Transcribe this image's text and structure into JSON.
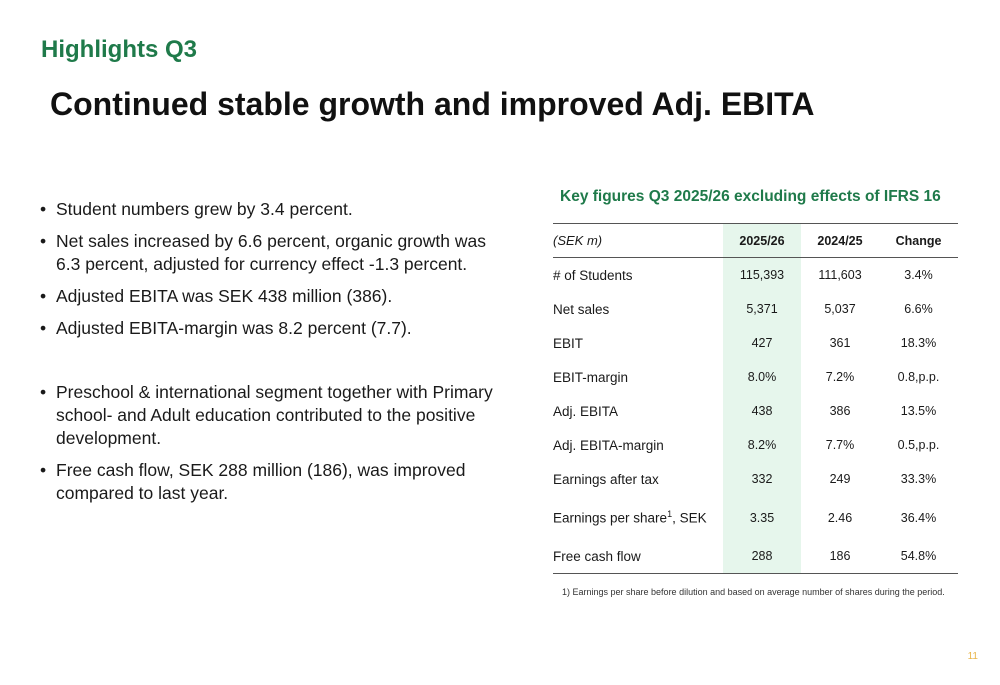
{
  "header": {
    "kicker": "Highlights Q3",
    "title": "Continued stable growth and improved Adj. EBITA"
  },
  "bullets": [
    "Student numbers grew by 3.4 percent.",
    "Net sales increased by 6.6 percent, organic growth was 6.3 percent, adjusted for currency effect -1.3 percent.",
    "Adjusted EBITA was SEK 438 million (386).",
    "Adjusted EBITA-margin was 8.2 percent (7.7).",
    "Preschool & international segment together with Primary school- and Adult education contributed to the positive development.",
    "Free cash flow, SEK 288 million (186), was improved compared to last year."
  ],
  "table": {
    "title": "Key figures Q3 2025/26 excluding effects of IFRS 16",
    "columns": [
      "(SEK m)",
      "2025/26",
      "2024/25",
      "Change"
    ],
    "rows": [
      {
        "label": "# of Students",
        "current": "115,393",
        "previous": "111,603",
        "change": "3.4%"
      },
      {
        "label": "Net sales",
        "current": "5,371",
        "previous": "5,037",
        "change": "6.6%"
      },
      {
        "label": "EBIT",
        "current": "427",
        "previous": "361",
        "change": "18.3%"
      },
      {
        "label": "EBIT-margin",
        "current": "8.0%",
        "previous": "7.2%",
        "change": "0.8,p.p."
      },
      {
        "label": "Adj. EBITA",
        "current": "438",
        "previous": "386",
        "change": "13.5%"
      },
      {
        "label": "Adj. EBITA-margin",
        "current": "8.2%",
        "previous": "7.7%",
        "change": "0.5,p.p."
      },
      {
        "label": "Earnings after tax",
        "current": "332",
        "previous": "249",
        "change": "33.3%"
      },
      {
        "label": "Earnings per share",
        "label_sup": "1",
        "label_suffix": ", SEK",
        "current": "3.35",
        "previous": "2.46",
        "change": "36.4%"
      },
      {
        "label": "Free cash flow",
        "current": "288",
        "previous": "186",
        "change": "54.8%"
      }
    ],
    "footnote": "1) Earnings per share before dilution and based on average number of shares during the period."
  },
  "page_number": "11",
  "colors": {
    "accent_green": "#1f7a4a",
    "highlight_column": "#e6f6ec",
    "page_number": "#e8b54a"
  }
}
